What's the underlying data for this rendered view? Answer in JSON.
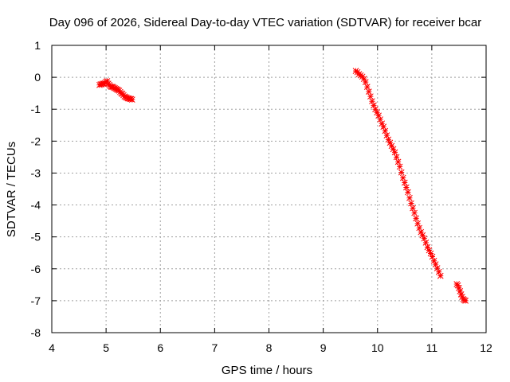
{
  "chart_data": {
    "type": "scatter",
    "title": "Day 096 of 2026, Sidereal Day-to-day VTEC variation (SDTVAR) for receiver bcar",
    "xlabel": "GPS time / hours",
    "ylabel": "SDTVAR / TECUs",
    "xlim": [
      4,
      12
    ],
    "ylim": [
      -8,
      1
    ],
    "xticks": [
      4,
      5,
      6,
      7,
      8,
      9,
      10,
      11,
      12
    ],
    "yticks": [
      1,
      0,
      -1,
      -2,
      -3,
      -4,
      -5,
      -6,
      -7,
      -8
    ],
    "grid": true,
    "marker": "plus-cross",
    "color": "#ff0000",
    "series": [
      {
        "x": [
          4.88,
          4.9,
          4.92,
          4.94,
          4.96,
          4.98,
          5.0,
          5.02,
          5.04,
          5.06,
          5.08,
          5.1,
          5.12,
          5.14,
          5.16,
          5.18,
          5.2,
          5.22,
          5.24,
          5.26,
          5.28,
          5.3,
          5.32,
          5.34,
          5.36,
          5.38,
          5.4,
          5.42,
          5.44,
          5.46,
          5.48
        ],
        "y": [
          -0.24,
          -0.22,
          -0.22,
          -0.2,
          -0.2,
          -0.18,
          -0.14,
          -0.12,
          -0.2,
          -0.24,
          -0.28,
          -0.3,
          -0.3,
          -0.32,
          -0.34,
          -0.36,
          -0.38,
          -0.4,
          -0.42,
          -0.46,
          -0.5,
          -0.52,
          -0.56,
          -0.6,
          -0.62,
          -0.64,
          -0.66,
          -0.66,
          -0.68,
          -0.68,
          -0.7
        ]
      },
      {
        "x": [
          9.6,
          9.63,
          9.66,
          9.69,
          9.72,
          9.75,
          9.78,
          9.81,
          9.84,
          9.87,
          9.9,
          9.93,
          9.96,
          9.99,
          10.02,
          10.05,
          10.08,
          10.11,
          10.14,
          10.17,
          10.2,
          10.23,
          10.26,
          10.29,
          10.32,
          10.35,
          10.38,
          10.41,
          10.44,
          10.47,
          10.5,
          10.53,
          10.56,
          10.59,
          10.62,
          10.65,
          10.68,
          10.71,
          10.74,
          10.77,
          10.8,
          10.83,
          10.86,
          10.89,
          10.92,
          10.95,
          10.98,
          11.01,
          11.04,
          11.07,
          11.1,
          11.13,
          11.16
        ],
        "y": [
          0.2,
          0.16,
          0.1,
          0.06,
          0.02,
          -0.05,
          -0.15,
          -0.3,
          -0.45,
          -0.6,
          -0.75,
          -0.88,
          -1.0,
          -1.1,
          -1.2,
          -1.32,
          -1.45,
          -1.55,
          -1.68,
          -1.82,
          -1.95,
          -2.05,
          -2.15,
          -2.25,
          -2.35,
          -2.5,
          -2.65,
          -2.8,
          -2.98,
          -3.15,
          -3.3,
          -3.45,
          -3.6,
          -3.78,
          -3.95,
          -4.1,
          -4.25,
          -4.42,
          -4.58,
          -4.72,
          -4.85,
          -4.95,
          -5.05,
          -5.18,
          -5.32,
          -5.42,
          -5.52,
          -5.62,
          -5.75,
          -5.86,
          -5.98,
          -6.1,
          -6.22
        ]
      },
      {
        "x": [
          11.46,
          11.48,
          11.5,
          11.52,
          11.54,
          11.56,
          11.58,
          11.6,
          11.62
        ],
        "y": [
          -6.48,
          -6.52,
          -6.6,
          -6.7,
          -6.8,
          -6.88,
          -6.95,
          -6.98,
          -7.0
        ]
      }
    ]
  }
}
